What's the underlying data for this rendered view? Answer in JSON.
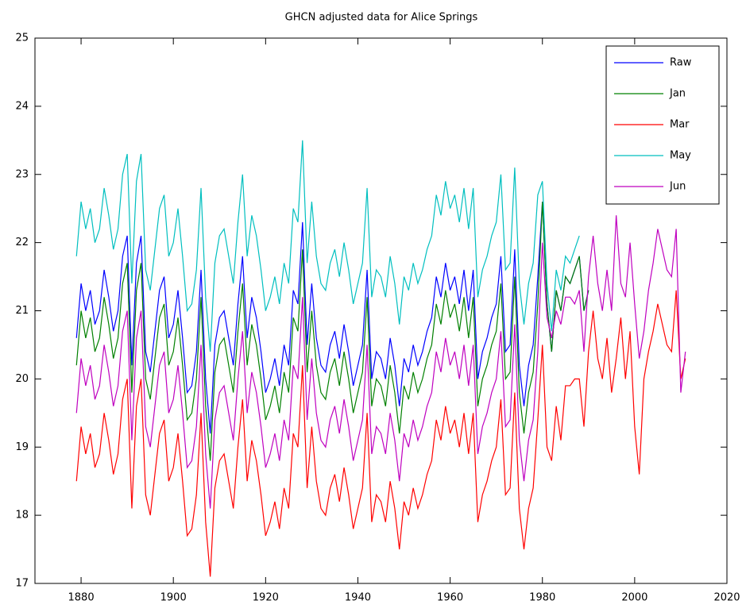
{
  "chart_data": {
    "type": "line",
    "title": "GHCN adjusted data for Alice Springs",
    "x": [
      1879,
      1880,
      1881,
      1882,
      1883,
      1884,
      1885,
      1886,
      1887,
      1888,
      1889,
      1890,
      1891,
      1892,
      1893,
      1894,
      1895,
      1896,
      1897,
      1898,
      1899,
      1900,
      1901,
      1902,
      1903,
      1904,
      1905,
      1906,
      1907,
      1908,
      1909,
      1910,
      1911,
      1912,
      1913,
      1914,
      1915,
      1916,
      1917,
      1918,
      1919,
      1920,
      1921,
      1922,
      1923,
      1924,
      1925,
      1926,
      1927,
      1928,
      1929,
      1930,
      1931,
      1932,
      1933,
      1934,
      1935,
      1936,
      1937,
      1938,
      1939,
      1940,
      1941,
      1942,
      1943,
      1944,
      1945,
      1946,
      1947,
      1948,
      1949,
      1950,
      1951,
      1952,
      1953,
      1954,
      1955,
      1956,
      1957,
      1958,
      1959,
      1960,
      1961,
      1962,
      1963,
      1964,
      1965,
      1966,
      1967,
      1968,
      1969,
      1970,
      1971,
      1972,
      1973,
      1974,
      1975,
      1976,
      1977,
      1978,
      1979,
      1980,
      1981,
      1982,
      1983,
      1984,
      1985,
      1986,
      1987,
      1988,
      1989,
      1990,
      1991,
      1992,
      1993,
      1994,
      1995,
      1996,
      1997,
      1998,
      1999,
      2000,
      2001,
      2002,
      2003,
      2004,
      2005,
      2006,
      2007,
      2008,
      2009,
      2010,
      2011
    ],
    "series": [
      {
        "name": "Raw",
        "color": "#0000ff",
        "values": [
          20.6,
          21.4,
          21.0,
          21.3,
          20.8,
          21.0,
          21.6,
          21.2,
          20.7,
          21.0,
          21.8,
          22.1,
          20.2,
          21.7,
          22.1,
          20.4,
          20.1,
          20.7,
          21.3,
          21.5,
          20.6,
          20.8,
          21.3,
          20.6,
          19.8,
          19.9,
          20.4,
          21.6,
          20.0,
          19.2,
          20.5,
          20.9,
          21.0,
          20.6,
          20.2,
          21.1,
          21.8,
          20.6,
          21.2,
          20.9,
          20.4,
          19.8,
          20.0,
          20.3,
          19.9,
          20.5,
          20.2,
          21.3,
          21.1,
          22.3,
          20.5,
          21.4,
          20.6,
          20.2,
          20.1,
          20.5,
          20.7,
          20.3,
          20.8,
          20.4,
          19.9,
          20.2,
          20.5,
          21.6,
          20.0,
          20.4,
          20.3,
          20.0,
          20.6,
          20.2,
          19.6,
          20.3,
          20.1,
          20.5,
          20.2,
          20.4,
          20.7,
          20.9,
          21.5,
          21.2,
          21.7,
          21.3,
          21.5,
          21.1,
          21.6,
          21.0,
          21.6,
          20.0,
          20.4,
          20.6,
          20.9,
          21.1,
          21.8,
          20.4,
          20.5,
          21.9,
          20.2,
          19.6,
          20.2,
          20.5,
          21.5,
          22.6,
          21.1,
          20.4,
          21.3,
          21.0,
          21.5,
          21.4,
          21.6,
          21.8,
          21.0,
          21.3,
          null,
          null,
          null,
          null,
          null,
          null,
          null,
          null,
          null,
          null,
          null,
          null,
          null,
          null,
          null,
          null,
          null,
          null,
          null,
          null,
          null
        ]
      },
      {
        "name": "Jan",
        "color": "#008000",
        "values": [
          20.2,
          21.0,
          20.6,
          20.9,
          20.4,
          20.6,
          21.2,
          20.8,
          20.3,
          20.6,
          21.4,
          21.7,
          19.8,
          21.3,
          21.7,
          20.0,
          19.7,
          20.3,
          20.9,
          21.1,
          20.2,
          20.4,
          20.9,
          20.2,
          19.4,
          19.5,
          20.0,
          21.2,
          19.6,
          18.8,
          20.1,
          20.5,
          20.6,
          20.2,
          19.8,
          20.7,
          21.4,
          20.2,
          20.8,
          20.5,
          20.0,
          19.4,
          19.6,
          19.9,
          19.5,
          20.1,
          19.8,
          20.9,
          20.7,
          21.9,
          20.1,
          21.0,
          20.2,
          19.8,
          19.7,
          20.1,
          20.3,
          19.9,
          20.4,
          20.0,
          19.5,
          19.8,
          20.1,
          21.2,
          19.6,
          20.0,
          19.9,
          19.6,
          20.2,
          19.8,
          19.2,
          19.9,
          19.7,
          20.1,
          19.8,
          20.0,
          20.3,
          20.5,
          21.1,
          20.8,
          21.3,
          20.9,
          21.1,
          20.7,
          21.2,
          20.6,
          21.2,
          19.6,
          20.0,
          20.2,
          20.5,
          20.7,
          21.4,
          20.0,
          20.1,
          21.5,
          19.8,
          19.2,
          19.8,
          20.1,
          21.1,
          22.6,
          21.1,
          20.4,
          21.3,
          21.0,
          21.5,
          21.4,
          21.6,
          21.8,
          21.0,
          21.3,
          null,
          null,
          null,
          null,
          null,
          null,
          null,
          null,
          null,
          null,
          null,
          null,
          null,
          null,
          null,
          null,
          null,
          null,
          null,
          null,
          null
        ]
      },
      {
        "name": "Mar",
        "color": "#ff0000",
        "values": [
          18.5,
          19.3,
          18.9,
          19.2,
          18.7,
          18.9,
          19.5,
          19.1,
          18.6,
          18.9,
          19.7,
          20.0,
          18.1,
          19.6,
          20.0,
          18.3,
          18.0,
          18.6,
          19.2,
          19.4,
          18.5,
          18.7,
          19.2,
          18.5,
          17.7,
          17.8,
          18.3,
          19.5,
          17.9,
          17.1,
          18.4,
          18.8,
          18.9,
          18.5,
          18.1,
          19.0,
          19.7,
          18.5,
          19.1,
          18.8,
          18.3,
          17.7,
          17.9,
          18.2,
          17.8,
          18.4,
          18.1,
          19.2,
          19.0,
          20.2,
          18.4,
          19.3,
          18.5,
          18.1,
          18.0,
          18.4,
          18.6,
          18.2,
          18.7,
          18.3,
          17.8,
          18.1,
          18.4,
          19.5,
          17.9,
          18.3,
          18.2,
          17.9,
          18.5,
          18.1,
          17.5,
          18.2,
          18.0,
          18.4,
          18.1,
          18.3,
          18.6,
          18.8,
          19.4,
          19.1,
          19.6,
          19.2,
          19.4,
          19.0,
          19.5,
          18.9,
          19.5,
          17.9,
          18.3,
          18.5,
          18.8,
          19.0,
          19.7,
          18.3,
          18.4,
          19.8,
          18.1,
          17.5,
          18.1,
          18.4,
          19.4,
          20.5,
          19.0,
          18.8,
          19.6,
          19.1,
          19.9,
          19.9,
          20.0,
          20.0,
          19.3,
          20.4,
          21.0,
          20.3,
          20.0,
          20.6,
          19.8,
          20.3,
          20.9,
          20.0,
          20.7,
          19.3,
          18.6,
          20.0,
          20.4,
          20.7,
          21.1,
          20.8,
          20.5,
          20.4,
          21.3,
          20.0,
          20.3
        ]
      },
      {
        "name": "May",
        "color": "#00bfbf",
        "values": [
          21.8,
          22.6,
          22.2,
          22.5,
          22.0,
          22.2,
          22.8,
          22.4,
          21.9,
          22.2,
          23.0,
          23.3,
          21.4,
          22.9,
          23.3,
          21.6,
          21.3,
          21.9,
          22.5,
          22.7,
          21.8,
          22.0,
          22.5,
          21.8,
          21.0,
          21.1,
          21.6,
          22.8,
          21.2,
          20.4,
          21.7,
          22.1,
          22.2,
          21.8,
          21.4,
          22.3,
          23.0,
          21.8,
          22.4,
          22.1,
          21.6,
          21.0,
          21.2,
          21.5,
          21.1,
          21.7,
          21.4,
          22.5,
          22.3,
          23.5,
          21.7,
          22.6,
          21.8,
          21.4,
          21.3,
          21.7,
          21.9,
          21.5,
          22.0,
          21.6,
          21.1,
          21.4,
          21.7,
          22.8,
          21.2,
          21.6,
          21.5,
          21.2,
          21.8,
          21.4,
          20.8,
          21.5,
          21.3,
          21.7,
          21.4,
          21.6,
          21.9,
          22.1,
          22.7,
          22.4,
          22.9,
          22.5,
          22.7,
          22.3,
          22.8,
          22.2,
          22.8,
          21.2,
          21.6,
          21.8,
          22.1,
          22.3,
          23.0,
          21.6,
          21.7,
          23.1,
          21.4,
          20.8,
          21.4,
          21.7,
          22.7,
          22.9,
          21.4,
          20.7,
          21.6,
          21.3,
          21.8,
          21.7,
          21.9,
          22.1,
          null,
          null,
          null,
          null,
          null,
          null,
          null,
          null,
          null,
          null,
          null,
          null,
          null,
          null,
          null,
          null,
          null,
          null,
          null,
          null,
          null,
          null,
          null
        ]
      },
      {
        "name": "Jun",
        "color": "#bf00bf",
        "values": [
          19.5,
          20.3,
          19.9,
          20.2,
          19.7,
          19.9,
          20.5,
          20.1,
          19.6,
          19.9,
          20.7,
          21.0,
          19.1,
          20.6,
          21.0,
          19.3,
          19.0,
          19.6,
          20.2,
          20.4,
          19.5,
          19.7,
          20.2,
          19.5,
          18.7,
          18.8,
          19.3,
          20.5,
          18.9,
          18.1,
          19.4,
          19.8,
          19.9,
          19.5,
          19.1,
          20.0,
          20.7,
          19.5,
          20.1,
          19.8,
          19.3,
          18.7,
          18.9,
          19.2,
          18.8,
          19.4,
          19.1,
          20.2,
          20.0,
          21.2,
          19.4,
          20.3,
          19.5,
          19.1,
          19.0,
          19.4,
          19.6,
          19.2,
          19.7,
          19.3,
          18.8,
          19.1,
          19.4,
          20.5,
          18.9,
          19.3,
          19.2,
          18.9,
          19.5,
          19.1,
          18.5,
          19.2,
          19.0,
          19.4,
          19.1,
          19.3,
          19.6,
          19.8,
          20.4,
          20.1,
          20.6,
          20.2,
          20.4,
          20.0,
          20.5,
          19.9,
          20.5,
          18.9,
          19.3,
          19.5,
          19.8,
          20.0,
          20.7,
          19.3,
          19.4,
          20.8,
          19.1,
          18.5,
          19.1,
          19.4,
          20.4,
          22.0,
          20.9,
          20.6,
          21.0,
          20.8,
          21.2,
          21.2,
          21.1,
          21.3,
          20.4,
          21.5,
          22.1,
          21.4,
          21.0,
          21.6,
          21.0,
          22.4,
          21.4,
          21.2,
          22.0,
          21.1,
          20.3,
          20.7,
          21.3,
          21.7,
          22.2,
          21.9,
          21.6,
          21.5,
          22.2,
          19.8,
          20.4
        ]
      }
    ],
    "xlim": [
      1870,
      2020
    ],
    "xticks": [
      1880,
      1900,
      1920,
      1940,
      1960,
      1980,
      2000,
      2020
    ],
    "ylim": [
      17,
      25
    ],
    "yticks": [
      17,
      18,
      19,
      20,
      21,
      22,
      23,
      24,
      25
    ],
    "legend": "upper right",
    "grid": false
  }
}
